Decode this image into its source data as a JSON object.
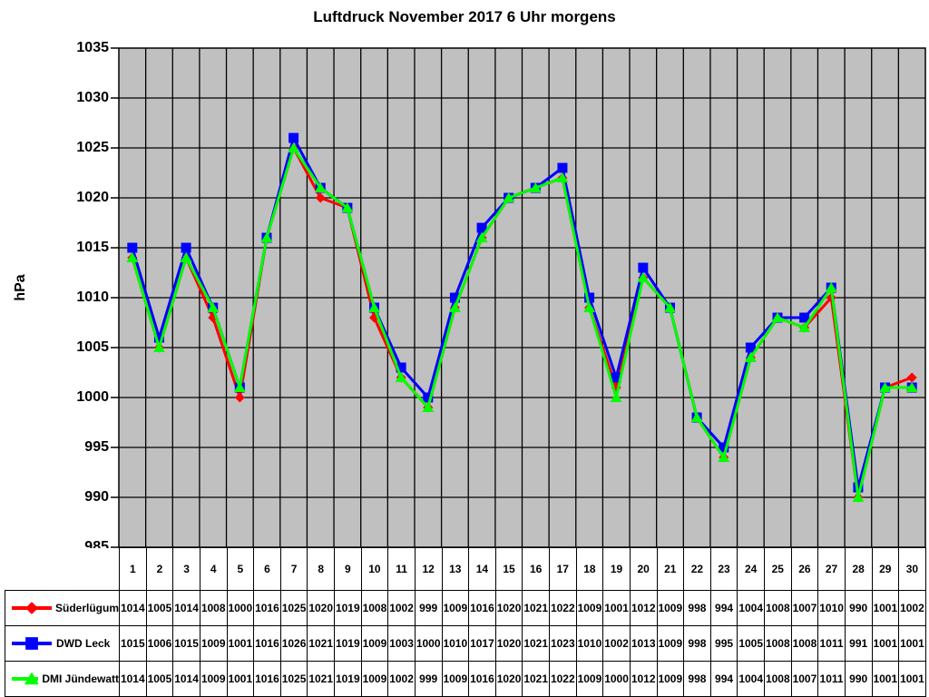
{
  "chart_data": {
    "type": "line",
    "title": "Luftdruck November 2017 6 Uhr morgens",
    "ylabel": "hPa",
    "xlabel": "",
    "ylim": [
      985,
      1035
    ],
    "ytick_step": 5,
    "grid": true,
    "plot_bg": "#c0c0c0",
    "grid_color": "#000000",
    "legend_position": "table-left",
    "categories": [
      "1",
      "2",
      "3",
      "4",
      "5",
      "6",
      "7",
      "8",
      "9",
      "10",
      "11",
      "12",
      "13",
      "14",
      "15",
      "16",
      "17",
      "18",
      "19",
      "20",
      "21",
      "22",
      "23",
      "24",
      "25",
      "26",
      "27",
      "28",
      "29",
      "30"
    ],
    "series": [
      {
        "name": "Süderlügum",
        "color": "#ff0000",
        "marker": "diamond",
        "values": [
          1014,
          1005,
          1014,
          1008,
          1000,
          1016,
          1025,
          1020,
          1019,
          1008,
          1002,
          999,
          1009,
          1016,
          1020,
          1021,
          1022,
          1009,
          1001,
          1012,
          1009,
          998,
          994,
          1004,
          1008,
          1007,
          1010,
          990,
          1001,
          1002
        ]
      },
      {
        "name": "DWD Leck",
        "color": "#0000ff",
        "marker": "square",
        "values": [
          1015,
          1006,
          1015,
          1009,
          1001,
          1016,
          1026,
          1021,
          1019,
          1009,
          1003,
          1000,
          1010,
          1017,
          1020,
          1021,
          1023,
          1010,
          1002,
          1013,
          1009,
          998,
          995,
          1005,
          1008,
          1008,
          1011,
          991,
          1001,
          1001
        ]
      },
      {
        "name": "DMI Jündewatt",
        "color": "#00ff00",
        "marker": "triangle",
        "values": [
          1014,
          1005,
          1014,
          1009,
          1001,
          1016,
          1025,
          1021,
          1019,
          1009,
          1002,
          999,
          1009,
          1016,
          1020,
          1021,
          1022,
          1009,
          1000,
          1012,
          1009,
          998,
          994,
          1004,
          1008,
          1007,
          1011,
          990,
          1001,
          1001
        ]
      }
    ]
  }
}
